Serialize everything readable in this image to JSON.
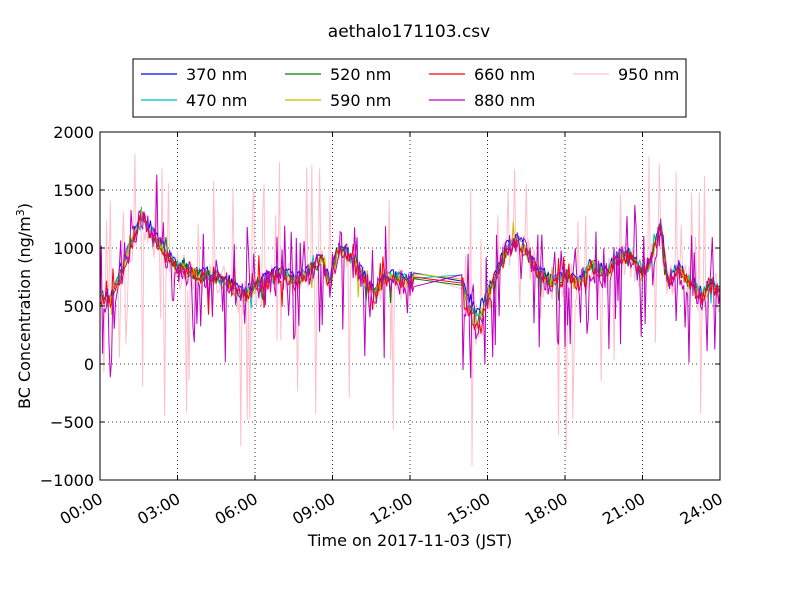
{
  "chart_data": {
    "type": "line",
    "title": "aethalo171103.csv",
    "xlabel": "Time on 2017-11-03 (JST)",
    "ylabel_main": "BC Concentration (ng/m",
    "ylabel_sup": "3",
    "ylabel_close": ")",
    "xlim": [
      0,
      24
    ],
    "ylim": [
      -1000,
      2000
    ],
    "grid": true,
    "legend_position": "top-center",
    "x_ticks": [
      0,
      3,
      6,
      9,
      12,
      15,
      18,
      21,
      24
    ],
    "x_tick_labels": [
      "00:00",
      "03:00",
      "06:00",
      "09:00",
      "12:00",
      "15:00",
      "18:00",
      "21:00",
      "24:00"
    ],
    "y_ticks": [
      -1000,
      -500,
      0,
      500,
      1000,
      1500,
      2000
    ],
    "y_tick_labels": [
      "−1000",
      "−500",
      "0",
      "500",
      "1000",
      "1500",
      "2000"
    ],
    "gap": [
      12.2,
      14.0
    ],
    "series": [
      {
        "name": "370 nm",
        "color": "#0000ff",
        "noise": 50,
        "spike": 0,
        "spike_prob": 0,
        "offset": 20,
        "seed": 11
      },
      {
        "name": "470 nm",
        "color": "#00bfbf",
        "noise": 55,
        "spike": 80,
        "spike_prob": 0.03,
        "offset": 0,
        "seed": 23
      },
      {
        "name": "520 nm",
        "color": "#008000",
        "noise": 55,
        "spike": 120,
        "spike_prob": 0.04,
        "offset": -10,
        "seed": 37
      },
      {
        "name": "590 nm",
        "color": "#bfbf00",
        "noise": 60,
        "spike": 140,
        "spike_prob": 0.04,
        "offset": -20,
        "seed": 41
      },
      {
        "name": "660 nm",
        "color": "#ff0000",
        "noise": 70,
        "spike": 180,
        "spike_prob": 0.06,
        "offset": -25,
        "seed": 53
      },
      {
        "name": "880 nm",
        "color": "#bf00bf",
        "noise": 120,
        "spike": 420,
        "spike_prob": 0.22,
        "offset": -30,
        "seed": 67
      },
      {
        "name": "950 nm",
        "color": "#ffc0cb",
        "noise": 170,
        "spike": 900,
        "spike_prob": 0.16,
        "offset": -40,
        "seed": 79
      }
    ],
    "baseline": [
      [
        0.0,
        600
      ],
      [
        0.4,
        560
      ],
      [
        0.8,
        800
      ],
      [
        1.2,
        1050
      ],
      [
        1.6,
        1300
      ],
      [
        2.0,
        1150
      ],
      [
        2.4,
        1000
      ],
      [
        2.8,
        880
      ],
      [
        3.2,
        830
      ],
      [
        3.8,
        780
      ],
      [
        4.4,
        760
      ],
      [
        5.0,
        700
      ],
      [
        5.6,
        600
      ],
      [
        6.0,
        660
      ],
      [
        6.4,
        720
      ],
      [
        7.0,
        800
      ],
      [
        7.6,
        720
      ],
      [
        8.2,
        840
      ],
      [
        8.6,
        920
      ],
      [
        8.9,
        700
      ],
      [
        9.2,
        1000
      ],
      [
        9.6,
        950
      ],
      [
        10.0,
        820
      ],
      [
        10.6,
        620
      ],
      [
        11.0,
        760
      ],
      [
        11.5,
        740
      ],
      [
        12.0,
        720
      ],
      [
        12.2,
        760
      ],
      [
        14.0,
        740
      ],
      [
        14.2,
        600
      ],
      [
        14.6,
        420
      ],
      [
        15.0,
        600
      ],
      [
        15.4,
        820
      ],
      [
        15.8,
        1020
      ],
      [
        16.2,
        1060
      ],
      [
        16.6,
        950
      ],
      [
        17.0,
        780
      ],
      [
        17.5,
        720
      ],
      [
        18.0,
        760
      ],
      [
        18.6,
        700
      ],
      [
        19.0,
        860
      ],
      [
        19.6,
        780
      ],
      [
        20.0,
        920
      ],
      [
        20.5,
        950
      ],
      [
        21.0,
        780
      ],
      [
        21.3,
        880
      ],
      [
        21.7,
        1200
      ],
      [
        22.0,
        720
      ],
      [
        22.4,
        820
      ],
      [
        22.8,
        720
      ],
      [
        23.3,
        600
      ],
      [
        23.7,
        700
      ],
      [
        24.0,
        620
      ]
    ]
  }
}
